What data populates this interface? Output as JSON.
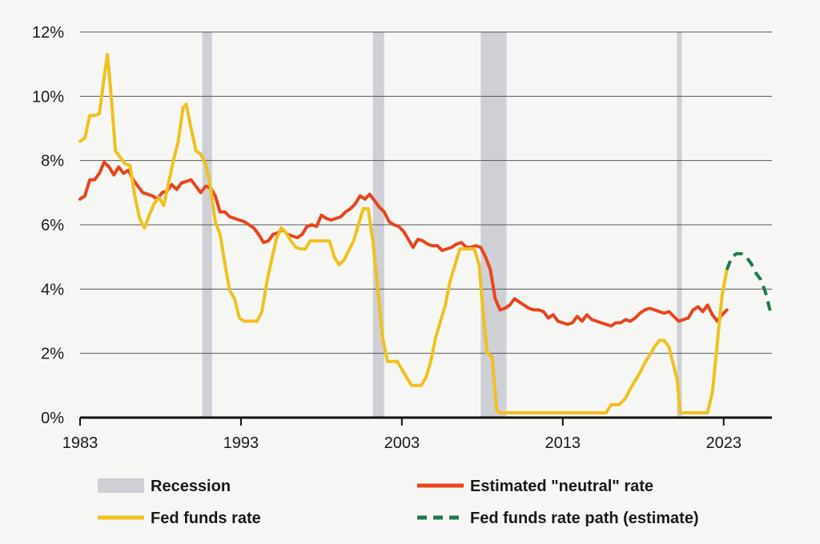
{
  "chart_data": {
    "type": "line",
    "title": "",
    "xlabel": "",
    "ylabel": "",
    "xlim": [
      1983,
      2026
    ],
    "ylim": [
      0,
      12
    ],
    "x_ticks": [
      1983,
      1993,
      2003,
      2013,
      2023
    ],
    "y_ticks": [
      0,
      2,
      4,
      6,
      8,
      10,
      12
    ],
    "x_tick_labels": [
      "1983",
      "1993",
      "2003",
      "2013",
      "2023"
    ],
    "y_tick_labels": [
      "0%",
      "2%",
      "4%",
      "6%",
      "8%",
      "10%",
      "12%"
    ],
    "grid": "horizontal",
    "legend_position": "bottom",
    "recessions": [
      [
        1990.6,
        1991.2
      ],
      [
        2001.2,
        2001.9
      ],
      [
        2007.9,
        2009.5
      ],
      [
        2020.1,
        2020.4
      ]
    ],
    "series": [
      {
        "name": "Estimated \"neutral\" rate",
        "color": "#e8451e",
        "style": "solid",
        "points": [
          [
            1983.0,
            6.8
          ],
          [
            1983.3,
            6.9
          ],
          [
            1983.6,
            7.4
          ],
          [
            1983.9,
            7.4
          ],
          [
            1984.2,
            7.6
          ],
          [
            1984.5,
            7.95
          ],
          [
            1984.8,
            7.8
          ],
          [
            1985.1,
            7.55
          ],
          [
            1985.4,
            7.8
          ],
          [
            1985.7,
            7.6
          ],
          [
            1986.0,
            7.7
          ],
          [
            1986.3,
            7.4
          ],
          [
            1986.6,
            7.2
          ],
          [
            1986.9,
            7.0
          ],
          [
            1987.2,
            6.95
          ],
          [
            1987.5,
            6.9
          ],
          [
            1987.8,
            6.8
          ],
          [
            1988.1,
            7.0
          ],
          [
            1988.4,
            7.05
          ],
          [
            1988.7,
            7.25
          ],
          [
            1989.0,
            7.1
          ],
          [
            1989.3,
            7.3
          ],
          [
            1989.6,
            7.35
          ],
          [
            1989.9,
            7.4
          ],
          [
            1990.2,
            7.2
          ],
          [
            1990.5,
            7.0
          ],
          [
            1990.8,
            7.2
          ],
          [
            1991.1,
            7.15
          ],
          [
            1991.4,
            6.9
          ],
          [
            1991.7,
            6.4
          ],
          [
            1992.0,
            6.4
          ],
          [
            1992.3,
            6.25
          ],
          [
            1992.6,
            6.2
          ],
          [
            1992.9,
            6.15
          ],
          [
            1993.2,
            6.1
          ],
          [
            1993.5,
            6.0
          ],
          [
            1993.8,
            5.9
          ],
          [
            1994.1,
            5.7
          ],
          [
            1994.4,
            5.45
          ],
          [
            1994.7,
            5.5
          ],
          [
            1995.0,
            5.7
          ],
          [
            1995.3,
            5.75
          ],
          [
            1995.6,
            5.85
          ],
          [
            1995.9,
            5.7
          ],
          [
            1996.2,
            5.65
          ],
          [
            1996.5,
            5.6
          ],
          [
            1996.8,
            5.7
          ],
          [
            1997.1,
            5.95
          ],
          [
            1997.4,
            6.0
          ],
          [
            1997.7,
            5.95
          ],
          [
            1998.0,
            6.3
          ],
          [
            1998.3,
            6.2
          ],
          [
            1998.6,
            6.15
          ],
          [
            1998.9,
            6.2
          ],
          [
            1999.2,
            6.25
          ],
          [
            1999.5,
            6.4
          ],
          [
            1999.8,
            6.5
          ],
          [
            2000.1,
            6.65
          ],
          [
            2000.4,
            6.9
          ],
          [
            2000.7,
            6.8
          ],
          [
            2001.0,
            6.95
          ],
          [
            2001.3,
            6.75
          ],
          [
            2001.6,
            6.55
          ],
          [
            2001.9,
            6.4
          ],
          [
            2002.2,
            6.1
          ],
          [
            2002.5,
            6.0
          ],
          [
            2002.8,
            5.95
          ],
          [
            2003.1,
            5.8
          ],
          [
            2003.4,
            5.55
          ],
          [
            2003.7,
            5.3
          ],
          [
            2004.0,
            5.55
          ],
          [
            2004.3,
            5.5
          ],
          [
            2004.6,
            5.4
          ],
          [
            2004.9,
            5.35
          ],
          [
            2005.2,
            5.35
          ],
          [
            2005.5,
            5.2
          ],
          [
            2005.8,
            5.25
          ],
          [
            2006.1,
            5.3
          ],
          [
            2006.4,
            5.4
          ],
          [
            2006.7,
            5.45
          ],
          [
            2007.0,
            5.3
          ],
          [
            2007.3,
            5.3
          ],
          [
            2007.6,
            5.35
          ],
          [
            2007.9,
            5.3
          ],
          [
            2008.2,
            5.0
          ],
          [
            2008.5,
            4.6
          ],
          [
            2008.8,
            3.7
          ],
          [
            2009.1,
            3.35
          ],
          [
            2009.4,
            3.4
          ],
          [
            2009.7,
            3.5
          ],
          [
            2010.0,
            3.7
          ],
          [
            2010.3,
            3.6
          ],
          [
            2010.6,
            3.5
          ],
          [
            2010.9,
            3.4
          ],
          [
            2011.2,
            3.35
          ],
          [
            2011.5,
            3.35
          ],
          [
            2011.8,
            3.3
          ],
          [
            2012.1,
            3.1
          ],
          [
            2012.4,
            3.2
          ],
          [
            2012.7,
            3.0
          ],
          [
            2013.0,
            2.95
          ],
          [
            2013.3,
            2.9
          ],
          [
            2013.6,
            2.95
          ],
          [
            2013.9,
            3.15
          ],
          [
            2014.2,
            3.0
          ],
          [
            2014.5,
            3.2
          ],
          [
            2014.8,
            3.05
          ],
          [
            2015.1,
            3.0
          ],
          [
            2015.4,
            2.95
          ],
          [
            2015.7,
            2.9
          ],
          [
            2016.0,
            2.85
          ],
          [
            2016.3,
            2.95
          ],
          [
            2016.6,
            2.95
          ],
          [
            2016.9,
            3.05
          ],
          [
            2017.2,
            3.0
          ],
          [
            2017.5,
            3.1
          ],
          [
            2017.8,
            3.25
          ],
          [
            2018.1,
            3.35
          ],
          [
            2018.4,
            3.4
          ],
          [
            2018.7,
            3.35
          ],
          [
            2019.0,
            3.3
          ],
          [
            2019.3,
            3.25
          ],
          [
            2019.6,
            3.3
          ],
          [
            2019.9,
            3.15
          ],
          [
            2020.2,
            3.0
          ],
          [
            2020.5,
            3.05
          ],
          [
            2020.8,
            3.1
          ],
          [
            2021.1,
            3.35
          ],
          [
            2021.4,
            3.45
          ],
          [
            2021.7,
            3.3
          ],
          [
            2022.0,
            3.5
          ],
          [
            2022.3,
            3.2
          ],
          [
            2022.6,
            3.0
          ],
          [
            2022.9,
            3.2
          ],
          [
            2023.2,
            3.35
          ]
        ]
      },
      {
        "name": "Fed funds rate",
        "color": "#f1c01e",
        "style": "solid",
        "points": [
          [
            1983.0,
            8.6
          ],
          [
            1983.3,
            8.7
          ],
          [
            1983.6,
            9.4
          ],
          [
            1983.9,
            9.4
          ],
          [
            1984.2,
            9.45
          ],
          [
            1984.5,
            10.6
          ],
          [
            1984.7,
            11.3
          ],
          [
            1984.9,
            10.2
          ],
          [
            1985.2,
            8.3
          ],
          [
            1985.5,
            8.1
          ],
          [
            1985.8,
            7.9
          ],
          [
            1986.1,
            7.85
          ],
          [
            1986.4,
            6.9
          ],
          [
            1986.7,
            6.2
          ],
          [
            1987.0,
            5.9
          ],
          [
            1987.3,
            6.3
          ],
          [
            1987.6,
            6.65
          ],
          [
            1987.9,
            6.85
          ],
          [
            1988.2,
            6.6
          ],
          [
            1988.5,
            7.3
          ],
          [
            1988.8,
            8.0
          ],
          [
            1989.1,
            8.6
          ],
          [
            1989.4,
            9.65
          ],
          [
            1989.6,
            9.75
          ],
          [
            1989.9,
            9.0
          ],
          [
            1990.2,
            8.3
          ],
          [
            1990.5,
            8.2
          ],
          [
            1990.8,
            7.9
          ],
          [
            1991.1,
            7.2
          ],
          [
            1991.4,
            6.1
          ],
          [
            1991.7,
            5.7
          ],
          [
            1992.0,
            4.8
          ],
          [
            1992.3,
            3.95
          ],
          [
            1992.6,
            3.7
          ],
          [
            1992.9,
            3.1
          ],
          [
            1993.2,
            3.0
          ],
          [
            1993.6,
            3.0
          ],
          [
            1994.0,
            3.0
          ],
          [
            1994.3,
            3.3
          ],
          [
            1994.6,
            4.2
          ],
          [
            1994.9,
            4.9
          ],
          [
            1995.2,
            5.55
          ],
          [
            1995.5,
            5.9
          ],
          [
            1995.8,
            5.75
          ],
          [
            1996.1,
            5.5
          ],
          [
            1996.4,
            5.3
          ],
          [
            1996.7,
            5.25
          ],
          [
            1997.0,
            5.25
          ],
          [
            1997.3,
            5.5
          ],
          [
            1997.6,
            5.5
          ],
          [
            1997.9,
            5.5
          ],
          [
            1998.2,
            5.5
          ],
          [
            1998.5,
            5.5
          ],
          [
            1998.8,
            5.0
          ],
          [
            1999.1,
            4.75
          ],
          [
            1999.4,
            4.9
          ],
          [
            1999.7,
            5.2
          ],
          [
            2000.0,
            5.5
          ],
          [
            2000.3,
            6.0
          ],
          [
            2000.6,
            6.5
          ],
          [
            2000.9,
            6.5
          ],
          [
            2001.2,
            5.5
          ],
          [
            2001.5,
            4.0
          ],
          [
            2001.8,
            2.5
          ],
          [
            2002.1,
            1.75
          ],
          [
            2002.4,
            1.75
          ],
          [
            2002.7,
            1.75
          ],
          [
            2003.0,
            1.5
          ],
          [
            2003.3,
            1.25
          ],
          [
            2003.6,
            1.0
          ],
          [
            2003.9,
            1.0
          ],
          [
            2004.2,
            1.0
          ],
          [
            2004.5,
            1.25
          ],
          [
            2004.8,
            1.75
          ],
          [
            2005.1,
            2.5
          ],
          [
            2005.4,
            3.0
          ],
          [
            2005.7,
            3.5
          ],
          [
            2006.0,
            4.25
          ],
          [
            2006.3,
            4.75
          ],
          [
            2006.6,
            5.25
          ],
          [
            2006.9,
            5.25
          ],
          [
            2007.2,
            5.25
          ],
          [
            2007.5,
            5.25
          ],
          [
            2007.8,
            4.75
          ],
          [
            2008.1,
            3.0
          ],
          [
            2008.3,
            2.0
          ],
          [
            2008.6,
            1.9
          ],
          [
            2008.9,
            0.2
          ],
          [
            2009.2,
            0.15
          ],
          [
            2010.0,
            0.15
          ],
          [
            2011.0,
            0.15
          ],
          [
            2012.0,
            0.15
          ],
          [
            2013.0,
            0.15
          ],
          [
            2014.0,
            0.15
          ],
          [
            2015.0,
            0.15
          ],
          [
            2015.7,
            0.15
          ],
          [
            2016.0,
            0.4
          ],
          [
            2016.5,
            0.4
          ],
          [
            2016.9,
            0.6
          ],
          [
            2017.2,
            0.9
          ],
          [
            2017.5,
            1.15
          ],
          [
            2017.8,
            1.4
          ],
          [
            2018.1,
            1.7
          ],
          [
            2018.4,
            1.95
          ],
          [
            2018.7,
            2.2
          ],
          [
            2019.0,
            2.4
          ],
          [
            2019.3,
            2.4
          ],
          [
            2019.6,
            2.2
          ],
          [
            2019.9,
            1.6
          ],
          [
            2020.1,
            1.2
          ],
          [
            2020.3,
            0.15
          ],
          [
            2021.0,
            0.15
          ],
          [
            2021.6,
            0.15
          ],
          [
            2022.0,
            0.15
          ],
          [
            2022.3,
            0.8
          ],
          [
            2022.6,
            2.3
          ],
          [
            2022.9,
            3.8
          ],
          [
            2023.2,
            4.6
          ]
        ]
      },
      {
        "name": "Fed funds rate path (estimate)",
        "color": "#1f7a4a",
        "style": "dashed",
        "points": [
          [
            2023.2,
            4.6
          ],
          [
            2023.5,
            5.0
          ],
          [
            2023.8,
            5.1
          ],
          [
            2024.1,
            5.1
          ],
          [
            2024.4,
            5.0
          ],
          [
            2024.7,
            4.8
          ],
          [
            2025.0,
            4.5
          ],
          [
            2025.3,
            4.3
          ],
          [
            2025.6,
            3.9
          ],
          [
            2025.9,
            3.3
          ]
        ]
      }
    ]
  },
  "legend": {
    "recession_label": "Recession",
    "recession_color": "#cfcfd6",
    "items": [
      {
        "label": "Estimated \"neutral\" rate",
        "color": "#e8451e",
        "style": "solid"
      },
      {
        "label": "Fed funds rate",
        "color": "#f1c01e",
        "style": "solid"
      },
      {
        "label": "Fed funds rate path (estimate)",
        "color": "#1f7a4a",
        "style": "dashed"
      }
    ]
  },
  "colors": {
    "background": "#f6f6f4",
    "grid": "#555555",
    "axis": "#111111",
    "text": "#1a1a1a"
  }
}
